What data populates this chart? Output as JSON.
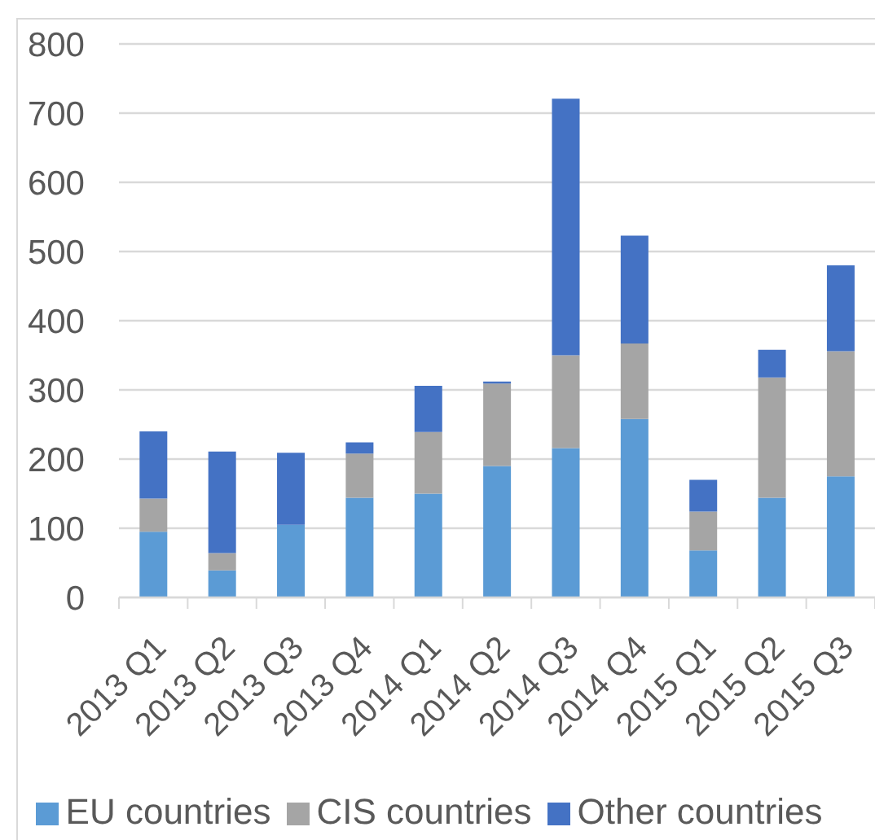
{
  "chart_data": {
    "type": "bar",
    "stacked": true,
    "categories": [
      "2013 Q1",
      "2013 Q2",
      "2013 Q3",
      "2013 Q4",
      "2014 Q1",
      "2014 Q2",
      "2014 Q3",
      "2014 Q4",
      "2015 Q1",
      "2015 Q2",
      "2015 Q3"
    ],
    "series": [
      {
        "name": "EU countries",
        "color": "#5b9bd5",
        "values": [
          95,
          39,
          105,
          144,
          150,
          190,
          216,
          258,
          68,
          144,
          175
        ]
      },
      {
        "name": "CIS countries",
        "color": "#a5a5a5",
        "values": [
          48,
          25,
          0,
          64,
          89,
          119,
          134,
          109,
          56,
          174,
          181
        ]
      },
      {
        "name": "Other countries",
        "color": "#4472c4",
        "values": [
          97,
          147,
          104,
          16,
          67,
          3,
          371,
          156,
          46,
          40,
          124
        ]
      }
    ],
    "ylim": [
      0,
      800
    ],
    "yticks": [
      0,
      100,
      200,
      300,
      400,
      500,
      600,
      700,
      800
    ],
    "grid": "y",
    "legend": "bottom"
  }
}
